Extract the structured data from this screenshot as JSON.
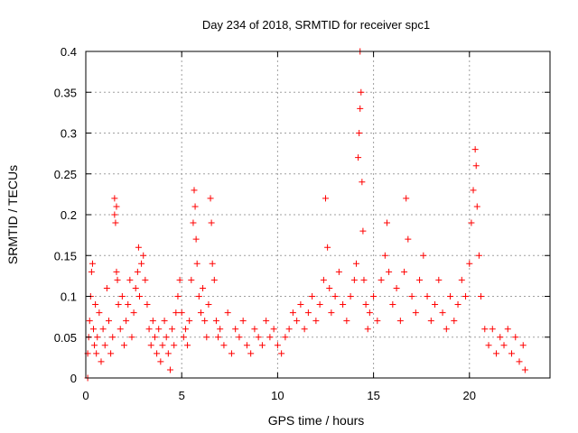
{
  "chart_data": {
    "type": "scatter",
    "title": "Day 234 of 2018, SRMTID for receiver spc1",
    "xlabel": "GPS time / hours",
    "ylabel": "SRMTID / TECUs",
    "xlim": [
      0,
      24.2
    ],
    "ylim": [
      0,
      0.4
    ],
    "x_ticks": [
      0,
      5,
      10,
      15,
      20
    ],
    "x_tick_labels": [
      "0",
      "5",
      "10",
      "15",
      "20"
    ],
    "y_ticks": [
      0,
      0.05,
      0.1,
      0.15,
      0.2,
      0.25,
      0.3,
      0.35,
      0.4
    ],
    "y_tick_labels": [
      "0",
      "0.05",
      "0.1",
      "0.15",
      "0.2",
      "0.25",
      "0.3",
      "0.35",
      "0.4"
    ],
    "grid": true,
    "marker": "plus",
    "colors": {
      "series": "#ff0000",
      "grid": "#a0a0a0",
      "axis": "#000000"
    },
    "series": [
      {
        "name": "SRMTID",
        "points": [
          [
            0.1,
            0.0
          ],
          [
            0.1,
            0.03
          ],
          [
            0.15,
            0.05
          ],
          [
            0.2,
            0.07
          ],
          [
            0.25,
            0.1
          ],
          [
            0.3,
            0.13
          ],
          [
            0.35,
            0.14
          ],
          [
            0.4,
            0.06
          ],
          [
            0.45,
            0.04
          ],
          [
            0.5,
            0.09
          ],
          [
            0.55,
            0.03
          ],
          [
            0.6,
            0.05
          ],
          [
            0.7,
            0.08
          ],
          [
            0.8,
            0.02
          ],
          [
            0.9,
            0.06
          ],
          [
            1.0,
            0.04
          ],
          [
            1.1,
            0.11
          ],
          [
            1.2,
            0.07
          ],
          [
            1.3,
            0.03
          ],
          [
            1.4,
            0.05
          ],
          [
            1.5,
            0.2
          ],
          [
            1.5,
            0.22
          ],
          [
            1.55,
            0.19
          ],
          [
            1.6,
            0.21
          ],
          [
            1.6,
            0.13
          ],
          [
            1.65,
            0.12
          ],
          [
            1.7,
            0.09
          ],
          [
            1.8,
            0.06
          ],
          [
            1.9,
            0.1
          ],
          [
            2.0,
            0.04
          ],
          [
            2.1,
            0.07
          ],
          [
            2.2,
            0.09
          ],
          [
            2.3,
            0.12
          ],
          [
            2.4,
            0.05
          ],
          [
            2.5,
            0.08
          ],
          [
            2.6,
            0.11
          ],
          [
            2.7,
            0.13
          ],
          [
            2.75,
            0.16
          ],
          [
            2.8,
            0.1
          ],
          [
            2.9,
            0.14
          ],
          [
            3.0,
            0.15
          ],
          [
            3.1,
            0.12
          ],
          [
            3.2,
            0.09
          ],
          [
            3.3,
            0.06
          ],
          [
            3.4,
            0.04
          ],
          [
            3.5,
            0.07
          ],
          [
            3.6,
            0.05
          ],
          [
            3.7,
            0.03
          ],
          [
            3.8,
            0.06
          ],
          [
            3.9,
            0.02
          ],
          [
            4.0,
            0.04
          ],
          [
            4.1,
            0.07
          ],
          [
            4.2,
            0.05
          ],
          [
            4.3,
            0.03
          ],
          [
            4.4,
            0.01
          ],
          [
            4.5,
            0.06
          ],
          [
            4.6,
            0.04
          ],
          [
            4.7,
            0.08
          ],
          [
            4.8,
            0.1
          ],
          [
            4.9,
            0.12
          ],
          [
            5.0,
            0.08
          ],
          [
            5.1,
            0.05
          ],
          [
            5.2,
            0.06
          ],
          [
            5.3,
            0.04
          ],
          [
            5.4,
            0.07
          ],
          [
            5.5,
            0.12
          ],
          [
            5.6,
            0.19
          ],
          [
            5.65,
            0.23
          ],
          [
            5.7,
            0.21
          ],
          [
            5.75,
            0.17
          ],
          [
            5.8,
            0.14
          ],
          [
            5.9,
            0.1
          ],
          [
            6.0,
            0.08
          ],
          [
            6.1,
            0.11
          ],
          [
            6.2,
            0.07
          ],
          [
            6.3,
            0.05
          ],
          [
            6.4,
            0.09
          ],
          [
            6.5,
            0.22
          ],
          [
            6.55,
            0.19
          ],
          [
            6.6,
            0.14
          ],
          [
            6.7,
            0.12
          ],
          [
            6.8,
            0.07
          ],
          [
            6.9,
            0.05
          ],
          [
            7.0,
            0.06
          ],
          [
            7.2,
            0.04
          ],
          [
            7.4,
            0.08
          ],
          [
            7.6,
            0.03
          ],
          [
            7.8,
            0.06
          ],
          [
            8.0,
            0.05
          ],
          [
            8.2,
            0.07
          ],
          [
            8.4,
            0.04
          ],
          [
            8.6,
            0.03
          ],
          [
            8.8,
            0.06
          ],
          [
            9.0,
            0.05
          ],
          [
            9.2,
            0.04
          ],
          [
            9.4,
            0.07
          ],
          [
            9.6,
            0.05
          ],
          [
            9.8,
            0.06
          ],
          [
            10.0,
            0.04
          ],
          [
            10.2,
            0.03
          ],
          [
            10.4,
            0.05
          ],
          [
            10.6,
            0.06
          ],
          [
            10.8,
            0.08
          ],
          [
            11.0,
            0.07
          ],
          [
            11.2,
            0.09
          ],
          [
            11.4,
            0.06
          ],
          [
            11.6,
            0.08
          ],
          [
            11.8,
            0.1
          ],
          [
            12.0,
            0.07
          ],
          [
            12.2,
            0.09
          ],
          [
            12.4,
            0.12
          ],
          [
            12.5,
            0.22
          ],
          [
            12.6,
            0.16
          ],
          [
            12.7,
            0.11
          ],
          [
            12.8,
            0.08
          ],
          [
            13.0,
            0.1
          ],
          [
            13.2,
            0.13
          ],
          [
            13.4,
            0.09
          ],
          [
            13.6,
            0.07
          ],
          [
            13.8,
            0.1
          ],
          [
            14.0,
            0.12
          ],
          [
            14.1,
            0.14
          ],
          [
            14.2,
            0.27
          ],
          [
            14.25,
            0.3
          ],
          [
            14.3,
            0.33
          ],
          [
            14.3,
            0.4
          ],
          [
            14.35,
            0.35
          ],
          [
            14.4,
            0.24
          ],
          [
            14.45,
            0.18
          ],
          [
            14.5,
            0.12
          ],
          [
            14.6,
            0.09
          ],
          [
            14.7,
            0.06
          ],
          [
            14.8,
            0.08
          ],
          [
            15.0,
            0.1
          ],
          [
            15.2,
            0.07
          ],
          [
            15.4,
            0.12
          ],
          [
            15.6,
            0.15
          ],
          [
            15.7,
            0.19
          ],
          [
            15.8,
            0.13
          ],
          [
            16.0,
            0.09
          ],
          [
            16.2,
            0.11
          ],
          [
            16.4,
            0.07
          ],
          [
            16.6,
            0.13
          ],
          [
            16.7,
            0.22
          ],
          [
            16.8,
            0.17
          ],
          [
            17.0,
            0.1
          ],
          [
            17.2,
            0.08
          ],
          [
            17.4,
            0.12
          ],
          [
            17.6,
            0.15
          ],
          [
            17.8,
            0.1
          ],
          [
            18.0,
            0.07
          ],
          [
            18.2,
            0.09
          ],
          [
            18.4,
            0.12
          ],
          [
            18.6,
            0.08
          ],
          [
            18.8,
            0.06
          ],
          [
            19.0,
            0.1
          ],
          [
            19.2,
            0.07
          ],
          [
            19.4,
            0.09
          ],
          [
            19.6,
            0.12
          ],
          [
            19.8,
            0.1
          ],
          [
            20.0,
            0.14
          ],
          [
            20.1,
            0.19
          ],
          [
            20.2,
            0.23
          ],
          [
            20.3,
            0.28
          ],
          [
            20.35,
            0.26
          ],
          [
            20.4,
            0.21
          ],
          [
            20.5,
            0.15
          ],
          [
            20.6,
            0.1
          ],
          [
            20.8,
            0.06
          ],
          [
            21.0,
            0.04
          ],
          [
            21.2,
            0.06
          ],
          [
            21.4,
            0.03
          ],
          [
            21.6,
            0.05
          ],
          [
            21.8,
            0.04
          ],
          [
            22.0,
            0.06
          ],
          [
            22.2,
            0.03
          ],
          [
            22.4,
            0.05
          ],
          [
            22.6,
            0.02
          ],
          [
            22.8,
            0.04
          ],
          [
            22.9,
            0.01
          ]
        ]
      }
    ]
  }
}
